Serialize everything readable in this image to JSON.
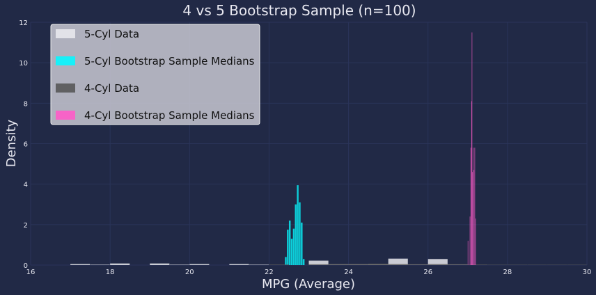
{
  "chart_data": {
    "type": "bar",
    "title": "4 vs 5 Bootstrap Sample (n=100)",
    "xlabel": "MPG (Average)",
    "ylabel": "Density",
    "xlim": [
      16,
      30
    ],
    "ylim": [
      0,
      12
    ],
    "xticks": [
      "16",
      "18",
      "20",
      "22",
      "24",
      "26",
      "28",
      "30"
    ],
    "yticks": [
      "0",
      "2",
      "4",
      "6",
      "8",
      "10",
      "12"
    ],
    "grid": true,
    "legend_position": "top-left",
    "series": [
      {
        "name": "5-Cyl Data",
        "kind": "histogram",
        "color": "#e8e8ec",
        "opacity": 0.85,
        "bars": [
          {
            "x0": 17.0,
            "x1": 17.5,
            "y": 0.05
          },
          {
            "x0": 17.5,
            "x1": 18.0,
            "y": 0.02
          },
          {
            "x0": 18.0,
            "x1": 18.5,
            "y": 0.08
          },
          {
            "x0": 19.0,
            "x1": 19.5,
            "y": 0.08
          },
          {
            "x0": 19.5,
            "x1": 20.0,
            "y": 0.02
          },
          {
            "x0": 20.0,
            "x1": 20.5,
            "y": 0.05
          },
          {
            "x0": 21.0,
            "x1": 21.5,
            "y": 0.05
          },
          {
            "x0": 21.5,
            "x1": 22.0,
            "y": 0.02
          },
          {
            "x0": 23.0,
            "x1": 23.5,
            "y": 0.22
          },
          {
            "x0": 23.5,
            "x1": 24.0,
            "y": 0.04
          },
          {
            "x0": 24.0,
            "x1": 24.5,
            "y": 0.04
          },
          {
            "x0": 24.5,
            "x1": 25.0,
            "y": 0.04
          },
          {
            "x0": 25.0,
            "x1": 25.5,
            "y": 0.32
          },
          {
            "x0": 25.5,
            "x1": 26.0,
            "y": 0.03
          },
          {
            "x0": 26.0,
            "x1": 26.5,
            "y": 0.3
          },
          {
            "x0": 26.5,
            "x1": 27.0,
            "y": 0.03
          }
        ]
      },
      {
        "name": "5-Cyl Bootstrap Sample Medians",
        "kind": "histogram",
        "color": "#08f7fe",
        "opacity": 0.8,
        "bars": [
          {
            "x0": 22.4,
            "x1": 22.45,
            "y": 0.4
          },
          {
            "x0": 22.45,
            "x1": 22.5,
            "y": 1.75
          },
          {
            "x0": 22.5,
            "x1": 22.55,
            "y": 2.2
          },
          {
            "x0": 22.55,
            "x1": 22.6,
            "y": 1.3
          },
          {
            "x0": 22.6,
            "x1": 22.65,
            "y": 1.8
          },
          {
            "x0": 22.65,
            "x1": 22.7,
            "y": 3.0
          },
          {
            "x0": 22.7,
            "x1": 22.75,
            "y": 3.95
          },
          {
            "x0": 22.75,
            "x1": 22.8,
            "y": 3.1
          },
          {
            "x0": 22.8,
            "x1": 22.85,
            "y": 2.1
          },
          {
            "x0": 22.85,
            "x1": 22.9,
            "y": 0.3
          }
        ]
      },
      {
        "name": "4-Cyl Data",
        "kind": "histogram",
        "color": "#585858",
        "opacity": 0.8,
        "bars": [
          {
            "x0": 22.0,
            "x1": 22.5,
            "y": 0.03
          },
          {
            "x0": 23.0,
            "x1": 23.5,
            "y": 0.04
          },
          {
            "x0": 23.5,
            "x1": 24.0,
            "y": 0.05
          },
          {
            "x0": 24.0,
            "x1": 24.5,
            "y": 0.05
          },
          {
            "x0": 24.5,
            "x1": 25.0,
            "y": 0.07
          },
          {
            "x0": 25.0,
            "x1": 25.5,
            "y": 0.05
          },
          {
            "x0": 25.5,
            "x1": 26.0,
            "y": 0.04
          },
          {
            "x0": 26.0,
            "x1": 26.5,
            "y": 0.05
          },
          {
            "x0": 26.5,
            "x1": 27.0,
            "y": 0.04
          },
          {
            "x0": 27.0,
            "x1": 27.5,
            "y": 0.03
          },
          {
            "x0": 27.5,
            "x1": 28.0,
            "y": 0.02
          },
          {
            "x0": 28.0,
            "x1": 28.5,
            "y": 0.02
          },
          {
            "x0": 28.5,
            "x1": 29.0,
            "y": 0.02
          },
          {
            "x0": 29.0,
            "x1": 29.5,
            "y": 0.02
          },
          {
            "x0": 29.5,
            "x1": 30.0,
            "y": 0.02
          }
        ]
      },
      {
        "name": "4-Cyl Bootstrap Sample Medians",
        "kind": "histogram",
        "color": "#ff5bc8",
        "opacity": 0.75,
        "bars": [
          {
            "x0": 27.0,
            "x1": 27.02,
            "y": 1.2
          },
          {
            "x0": 27.05,
            "x1": 27.07,
            "y": 2.4
          },
          {
            "x0": 27.07,
            "x1": 27.09,
            "y": 5.8
          },
          {
            "x0": 27.09,
            "x1": 27.1,
            "y": 8.1
          },
          {
            "x0": 27.1,
            "x1": 27.11,
            "y": 11.5
          },
          {
            "x0": 27.11,
            "x1": 27.13,
            "y": 4.6
          },
          {
            "x0": 27.13,
            "x1": 27.15,
            "y": 5.8
          },
          {
            "x0": 27.15,
            "x1": 27.17,
            "y": 4.7
          },
          {
            "x0": 27.17,
            "x1": 27.19,
            "y": 5.8
          },
          {
            "x0": 27.19,
            "x1": 27.21,
            "y": 2.3
          }
        ]
      }
    ]
  }
}
